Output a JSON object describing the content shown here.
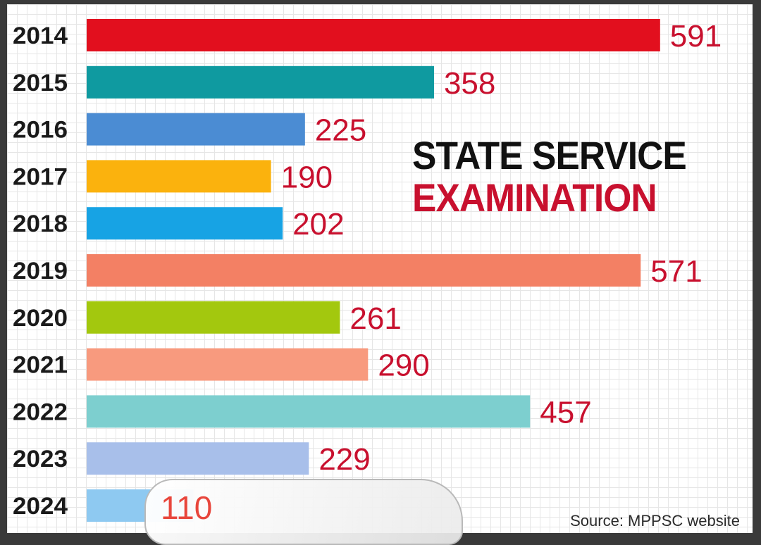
{
  "chart_data": {
    "type": "bar",
    "orientation": "horizontal",
    "title": "STATE SERVICE EXAMINATION",
    "title_line1": "STATE SERVICE",
    "title_line2": "EXAMINATION",
    "categories": [
      "2014",
      "2015",
      "2016",
      "2017",
      "2018",
      "2019",
      "2020",
      "2021",
      "2022",
      "2023",
      "2024"
    ],
    "values": [
      591,
      358,
      225,
      190,
      202,
      571,
      261,
      290,
      457,
      229,
      110
    ],
    "labels": [
      "591",
      "358",
      "225",
      "190",
      "202",
      "571",
      "261",
      "290",
      "457",
      "229",
      "110"
    ],
    "bar_colors": [
      "#e20f1e",
      "#0f9aa0",
      "#4b8cd3",
      "#fbb20d",
      "#17a3e4",
      "#f38064",
      "#a3c80e",
      "#f89a7e",
      "#7dcfcf",
      "#a8bfea",
      "#8ec9f1"
    ],
    "value_label_color": "#c8102e",
    "grid": true,
    "source": "Source: MPPSC website"
  }
}
